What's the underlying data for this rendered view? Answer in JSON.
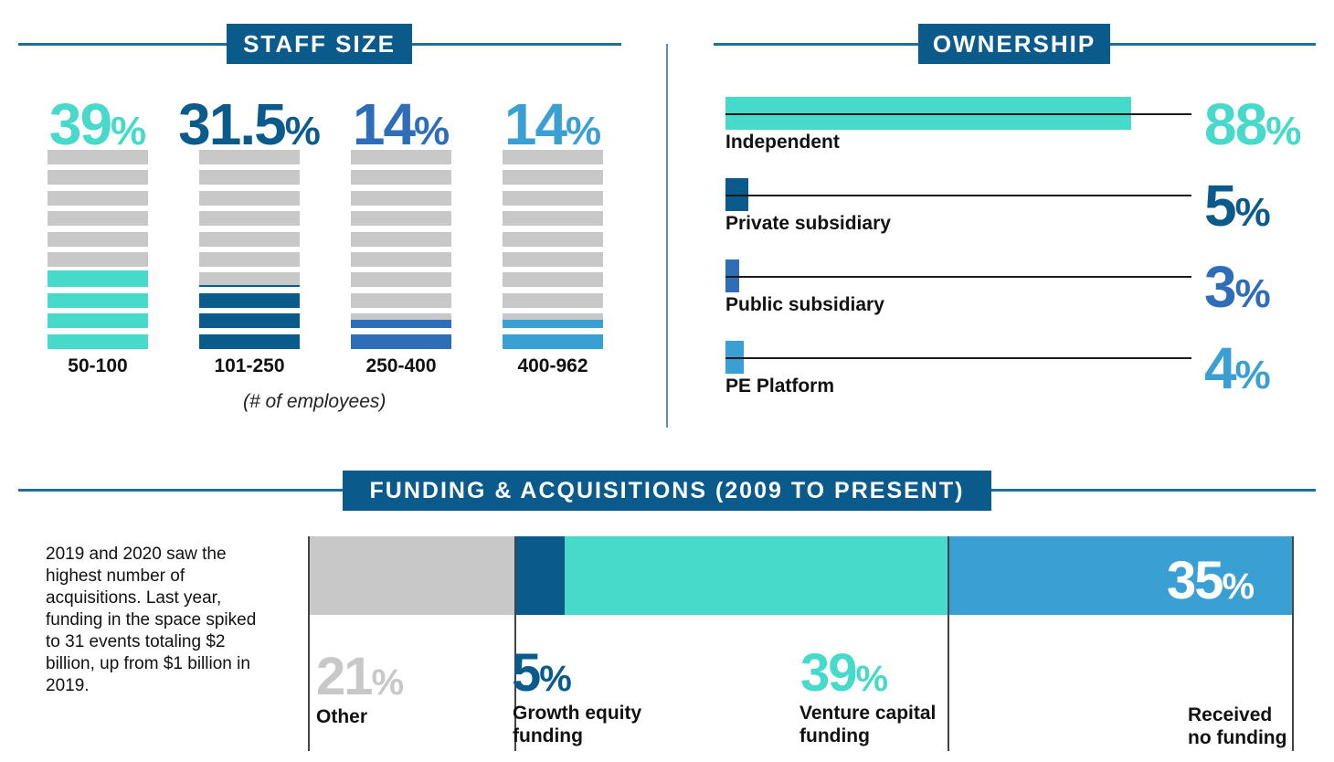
{
  "staff_size": {
    "header": "STAFF SIZE",
    "note": "(# of employees)",
    "groups": [
      {
        "label": "50-100",
        "value": 39,
        "display": "39",
        "color": "#47d9c9"
      },
      {
        "label": "101-250",
        "value": 31.5,
        "display": "31.5",
        "color": "#0a5a8c"
      },
      {
        "label": "250-400",
        "value": 14,
        "display": "14",
        "color": "#2e6db8"
      },
      {
        "label": "400-962",
        "value": 14,
        "display": "14",
        "color": "#3aa0d4"
      }
    ]
  },
  "ownership": {
    "header": "OWNERSHIP",
    "items": [
      {
        "label": "Independent",
        "value": 88,
        "display": "88",
        "color": "#47d9c9"
      },
      {
        "label": "Private subsidiary",
        "value": 5,
        "display": "5",
        "color": "#0a5a8c"
      },
      {
        "label": "Public subsidiary",
        "value": 3,
        "display": "3",
        "color": "#2e6db8"
      },
      {
        "label": "PE Platform",
        "value": 4,
        "display": "4",
        "color": "#3aa0d4"
      }
    ]
  },
  "funding": {
    "header": "FUNDING & ACQUISITIONS (2009 TO PRESENT)",
    "description": "2019 and 2020 saw the highest number of acquisitions. Last year, funding in the space spiked to 31 events totaling $2 billion, up from $1 billion in 2019.",
    "segments": [
      {
        "label_lines": [
          "Other"
        ],
        "value": 21,
        "display": "21",
        "color": "#c8c8c8"
      },
      {
        "label_lines": [
          "Growth equity",
          "funding"
        ],
        "value": 5,
        "display": "5",
        "color": "#0a5a8c"
      },
      {
        "label_lines": [
          "Venture capital",
          "funding"
        ],
        "value": 39,
        "display": "39",
        "color": "#47d9c9"
      },
      {
        "label_lines": [
          "Received",
          "no funding"
        ],
        "value": 35,
        "display": "35",
        "color": "#3aa0d4"
      }
    ]
  },
  "percent_symbol": "%",
  "colors": {
    "header_bg": "#0a5a8c",
    "rule": "#1f6c9e",
    "empty_bar": "#c8c8c8",
    "text": "#111111"
  },
  "chart_data": [
    {
      "type": "bar",
      "title": "STAFF SIZE",
      "xlabel": "(# of employees)",
      "categories": [
        "50-100",
        "101-250",
        "250-400",
        "400-962"
      ],
      "values": [
        39,
        31.5,
        14,
        14
      ],
      "ylim": [
        0,
        100
      ]
    },
    {
      "type": "bar",
      "title": "OWNERSHIP",
      "categories": [
        "Independent",
        "Private subsidiary",
        "Public subsidiary",
        "PE Platform"
      ],
      "values": [
        88,
        5,
        3,
        4
      ],
      "ylim": [
        0,
        100
      ]
    },
    {
      "type": "bar",
      "title": "FUNDING & ACQUISITIONS (2009 TO PRESENT)",
      "categories": [
        "Other",
        "Growth equity funding",
        "Venture capital funding",
        "Received no funding"
      ],
      "values": [
        21,
        5,
        39,
        35
      ],
      "ylim": [
        0,
        100
      ]
    }
  ]
}
